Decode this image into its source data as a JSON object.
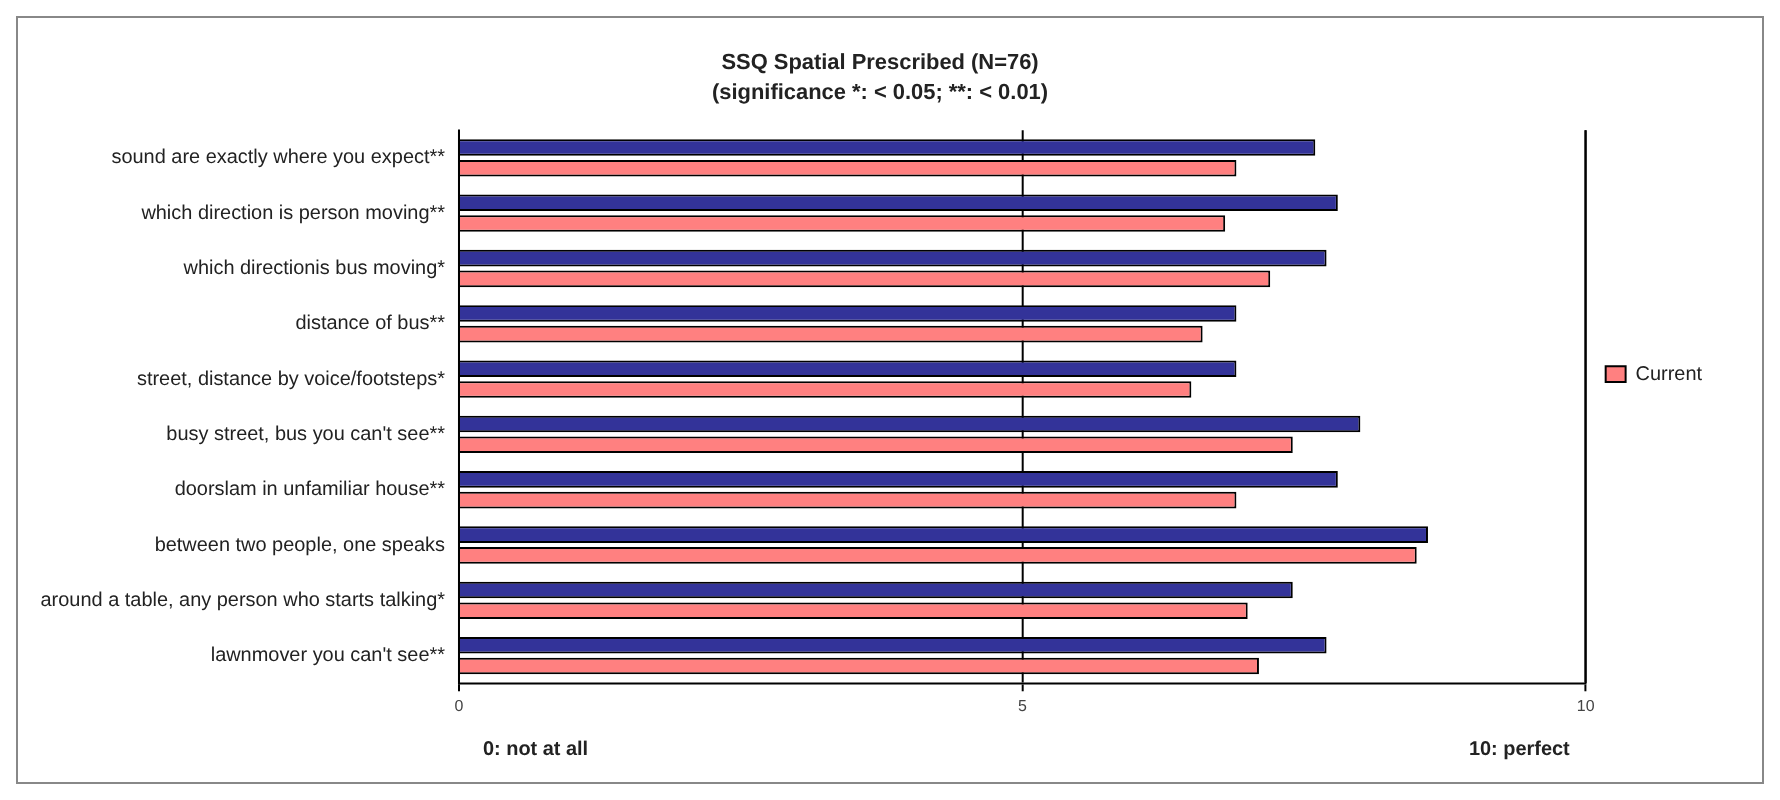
{
  "chart_data": {
    "type": "bar",
    "orientation": "horizontal",
    "title": "SSQ Spatial Prescribed (N=76)",
    "subtitle": "(significance *: < 0.05; **: < 0.01)",
    "categories": [
      "sound are exactly where you expect**",
      "which direction is person moving**",
      "which directionis bus moving*",
      "distance of bus**",
      "street, distance by voice/footsteps*",
      "busy street, bus you can't see**",
      "doorslam in unfamiliar house**",
      "between two people, one speaks",
      "around a table, any person who starts talking*",
      "lawnmover you can't see**"
    ],
    "series": [
      {
        "color": "#333399",
        "values": [
          7.6,
          7.8,
          7.7,
          6.9,
          6.9,
          8.0,
          7.8,
          8.6,
          7.4,
          7.7
        ]
      },
      {
        "name": "Current",
        "color": "#ff8080",
        "values": [
          6.9,
          6.8,
          7.2,
          6.6,
          6.5,
          7.4,
          6.9,
          8.5,
          7.0,
          7.1
        ]
      }
    ],
    "xlim": [
      0,
      10
    ],
    "xticks": [
      0,
      5,
      10
    ],
    "grid": "x",
    "legend": "right",
    "annotations": [
      "0: not at all",
      "10: perfect"
    ]
  }
}
